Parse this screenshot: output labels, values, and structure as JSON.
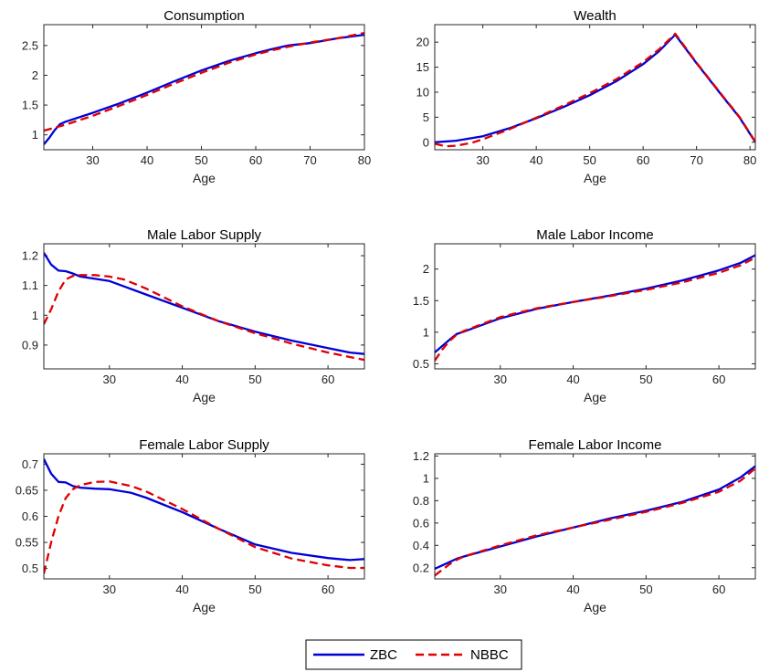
{
  "colors": {
    "ZBC": "#0000d8",
    "NBBC": "#e00000"
  },
  "legend": {
    "entries": [
      "ZBC",
      "NBBC"
    ],
    "placement": "bottom-center"
  },
  "chart_data": [
    {
      "type": "line",
      "title": "Consumption",
      "xlabel": "Age",
      "ylabel": "",
      "xlim": [
        21,
        80
      ],
      "ylim": [
        0.75,
        2.85
      ],
      "xticks": [
        30,
        40,
        50,
        60,
        70,
        80
      ],
      "yticks": [
        1,
        1.5,
        2,
        2.5
      ],
      "series": [
        {
          "name": "ZBC",
          "style": "solid",
          "x": [
            21,
            22,
            23,
            24,
            25,
            30,
            35,
            40,
            45,
            50,
            55,
            60,
            63,
            66,
            70,
            75,
            80
          ],
          "y": [
            0.84,
            0.95,
            1.08,
            1.18,
            1.22,
            1.37,
            1.53,
            1.71,
            1.9,
            2.08,
            2.24,
            2.37,
            2.44,
            2.5,
            2.54,
            2.62,
            2.68
          ]
        },
        {
          "name": "NBBC",
          "style": "dashed",
          "x": [
            21,
            25,
            30,
            35,
            40,
            45,
            50,
            55,
            60,
            63,
            66,
            70,
            75,
            80
          ],
          "y": [
            1.07,
            1.17,
            1.32,
            1.49,
            1.67,
            1.86,
            2.04,
            2.21,
            2.35,
            2.42,
            2.48,
            2.55,
            2.62,
            2.71
          ]
        }
      ]
    },
    {
      "type": "line",
      "title": "Wealth",
      "xlabel": "Age",
      "ylabel": "",
      "xlim": [
        21,
        81
      ],
      "ylim": [
        -1.5,
        23.5
      ],
      "xticks": [
        30,
        40,
        50,
        60,
        70,
        80
      ],
      "yticks": [
        0,
        5,
        10,
        15,
        20
      ],
      "series": [
        {
          "name": "ZBC",
          "style": "solid",
          "x": [
            21,
            25,
            30,
            35,
            40,
            45,
            50,
            55,
            60,
            63,
            66,
            70,
            75,
            78,
            81
          ],
          "y": [
            0,
            0.3,
            1.2,
            2.8,
            4.8,
            7.0,
            9.4,
            12.2,
            15.6,
            18.2,
            21.5,
            15.8,
            9.0,
            5.0,
            0
          ]
        },
        {
          "name": "NBBC",
          "style": "dashed",
          "x": [
            21,
            23,
            25,
            28,
            30,
            35,
            40,
            45,
            50,
            55,
            60,
            63,
            66,
            70,
            75,
            78,
            81
          ],
          "y": [
            -0.3,
            -0.8,
            -0.7,
            -0.1,
            0.6,
            2.6,
            4.9,
            7.3,
            9.8,
            12.6,
            16.0,
            18.6,
            21.7,
            15.9,
            9.1,
            5.1,
            0.1
          ]
        }
      ]
    },
    {
      "type": "line",
      "title": "Male Labor Supply",
      "xlabel": "Age",
      "ylabel": "",
      "xlim": [
        21,
        65
      ],
      "ylim": [
        0.82,
        1.24
      ],
      "xticks": [
        30,
        40,
        50,
        60
      ],
      "yticks": [
        0.9,
        1,
        1.1,
        1.2
      ],
      "series": [
        {
          "name": "ZBC",
          "style": "solid",
          "x": [
            21,
            22,
            23,
            24,
            25,
            26,
            30,
            35,
            40,
            45,
            50,
            55,
            60,
            63,
            65
          ],
          "y": [
            1.21,
            1.17,
            1.15,
            1.148,
            1.14,
            1.13,
            1.115,
            1.07,
            1.025,
            0.98,
            0.945,
            0.915,
            0.89,
            0.875,
            0.87
          ]
        },
        {
          "name": "NBBC",
          "style": "dashed",
          "x": [
            21,
            22,
            23,
            24,
            25,
            26,
            28,
            30,
            32,
            35,
            40,
            45,
            50,
            55,
            60,
            63,
            65
          ],
          "y": [
            0.97,
            1.02,
            1.08,
            1.12,
            1.132,
            1.135,
            1.135,
            1.13,
            1.12,
            1.09,
            1.03,
            0.98,
            0.94,
            0.905,
            0.875,
            0.86,
            0.85
          ]
        }
      ]
    },
    {
      "type": "line",
      "title": "Male Labor Income",
      "xlabel": "Age",
      "ylabel": "",
      "xlim": [
        21,
        65
      ],
      "ylim": [
        0.42,
        2.4
      ],
      "xticks": [
        30,
        40,
        50,
        60
      ],
      "yticks": [
        0.5,
        1,
        1.5,
        2
      ],
      "series": [
        {
          "name": "ZBC",
          "style": "solid",
          "x": [
            21,
            22,
            23,
            24,
            25,
            30,
            35,
            40,
            45,
            50,
            55,
            60,
            63,
            65
          ],
          "y": [
            0.68,
            0.78,
            0.88,
            0.97,
            1.01,
            1.22,
            1.37,
            1.48,
            1.58,
            1.69,
            1.82,
            1.98,
            2.1,
            2.22
          ]
        },
        {
          "name": "NBBC",
          "style": "dashed",
          "x": [
            21,
            22,
            23,
            24,
            25,
            30,
            35,
            40,
            45,
            50,
            55,
            60,
            63,
            65
          ],
          "y": [
            0.55,
            0.72,
            0.86,
            0.96,
            1.02,
            1.24,
            1.38,
            1.48,
            1.57,
            1.67,
            1.79,
            1.94,
            2.06,
            2.18
          ]
        }
      ]
    },
    {
      "type": "line",
      "title": "Female Labor Supply",
      "xlabel": "Age",
      "ylabel": "",
      "xlim": [
        21,
        65
      ],
      "ylim": [
        0.48,
        0.72
      ],
      "xticks": [
        30,
        40,
        50,
        60
      ],
      "yticks": [
        0.5,
        0.55,
        0.6,
        0.65,
        0.7
      ],
      "series": [
        {
          "name": "ZBC",
          "style": "solid",
          "x": [
            21,
            22,
            23,
            24,
            25,
            26,
            28,
            30,
            33,
            35,
            40,
            45,
            50,
            55,
            60,
            63,
            65
          ],
          "y": [
            0.71,
            0.682,
            0.666,
            0.665,
            0.658,
            0.655,
            0.653,
            0.652,
            0.645,
            0.636,
            0.608,
            0.576,
            0.546,
            0.53,
            0.52,
            0.516,
            0.518
          ]
        },
        {
          "name": "NBBC",
          "style": "dashed",
          "x": [
            21,
            22,
            23,
            24,
            25,
            26,
            28,
            30,
            33,
            35,
            40,
            45,
            50,
            55,
            60,
            63,
            65
          ],
          "y": [
            0.49,
            0.55,
            0.6,
            0.635,
            0.652,
            0.66,
            0.666,
            0.667,
            0.658,
            0.648,
            0.614,
            0.576,
            0.541,
            0.519,
            0.506,
            0.501,
            0.501
          ]
        }
      ]
    },
    {
      "type": "line",
      "title": "Female Labor Income",
      "xlabel": "Age",
      "ylabel": "",
      "xlim": [
        21,
        65
      ],
      "ylim": [
        0.1,
        1.22
      ],
      "xticks": [
        30,
        40,
        50,
        60
      ],
      "yticks": [
        0.2,
        0.4,
        0.6,
        0.8,
        1,
        1.2
      ],
      "series": [
        {
          "name": "ZBC",
          "style": "solid",
          "x": [
            21,
            22,
            23,
            24,
            25,
            30,
            35,
            40,
            45,
            50,
            55,
            60,
            63,
            65
          ],
          "y": [
            0.19,
            0.22,
            0.25,
            0.28,
            0.3,
            0.39,
            0.48,
            0.56,
            0.64,
            0.71,
            0.79,
            0.9,
            1.01,
            1.11
          ]
        },
        {
          "name": "NBBC",
          "style": "dashed",
          "x": [
            21,
            22,
            23,
            24,
            25,
            30,
            35,
            40,
            45,
            50,
            55,
            60,
            63,
            65
          ],
          "y": [
            0.13,
            0.18,
            0.23,
            0.27,
            0.3,
            0.4,
            0.49,
            0.56,
            0.63,
            0.7,
            0.78,
            0.88,
            0.98,
            1.09
          ]
        }
      ]
    }
  ]
}
